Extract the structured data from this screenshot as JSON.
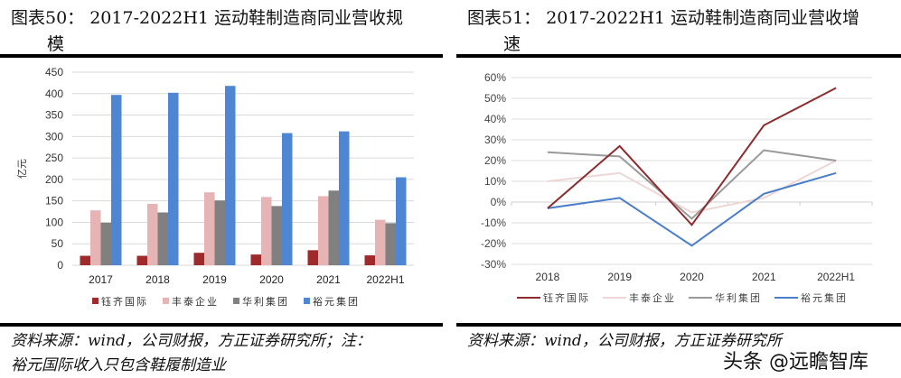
{
  "charts": [
    {
      "title_line1": "图表50：  2017-2022H1 运动鞋制造商同业营收规",
      "title_line2": "模",
      "source_line1": "资料来源：wind，公司财报，方正证券研究所；注：",
      "source_line2": "裕元国际收入只包含鞋履制造业"
    },
    {
      "title_line1": "图表51：  2017-2022H1 运动鞋制造商同业营收增",
      "title_line2": "速",
      "source_line1": "资料来源：wind，公司财报，方正证券研究所",
      "source_line2": ""
    }
  ],
  "watermark": "头条 @远瞻智库",
  "chart_data": [
    {
      "type": "bar",
      "title": "2017-2022H1 运动鞋制造商同业营收规模",
      "xlabel": "",
      "ylabel": "亿元",
      "ylim": [
        0,
        450
      ],
      "yticks": [
        0,
        50,
        100,
        150,
        200,
        250,
        300,
        350,
        400,
        450
      ],
      "grid": true,
      "legend_position": "bottom",
      "categories": [
        "2017",
        "2018",
        "2019",
        "2020",
        "2021",
        "2022H1"
      ],
      "series": [
        {
          "name": "钰齐国际",
          "color": "#9e2a2b",
          "values": [
            22,
            22,
            29,
            25,
            35,
            23
          ]
        },
        {
          "name": "丰泰企业",
          "color": "#e6b4b4",
          "values": [
            128,
            143,
            170,
            159,
            161,
            106
          ]
        },
        {
          "name": "华利集团",
          "color": "#808080",
          "values": [
            99,
            123,
            151,
            138,
            174,
            98
          ]
        },
        {
          "name": "裕元集团",
          "color": "#4f86d4",
          "values": [
            397,
            402,
            418,
            308,
            312,
            205
          ]
        }
      ]
    },
    {
      "type": "line",
      "title": "2017-2022H1 运动鞋制造商同业营收增速",
      "xlabel": "",
      "ylabel": "",
      "ylim": [
        -30,
        60
      ],
      "yticks": [
        -30,
        -20,
        -10,
        0,
        10,
        20,
        30,
        40,
        50,
        60
      ],
      "ytick_labels": [
        "-30%",
        "-20%",
        "-10%",
        "0%",
        "10%",
        "20%",
        "30%",
        "40%",
        "50%",
        "60%"
      ],
      "grid": true,
      "legend_position": "bottom",
      "categories": [
        "2018",
        "2019",
        "2020",
        "2021",
        "2022H1"
      ],
      "series": [
        {
          "name": "钰齐国际",
          "color": "#8b2c2e",
          "values": [
            -3,
            27,
            -11,
            37,
            55
          ]
        },
        {
          "name": "丰泰企业",
          "color": "#efd6d6",
          "values": [
            10,
            14,
            -5,
            2,
            20
          ]
        },
        {
          "name": "华利集团",
          "color": "#9a9a9a",
          "values": [
            24,
            22,
            -8,
            25,
            20
          ]
        },
        {
          "name": "裕元集团",
          "color": "#4a7ec9",
          "values": [
            -3,
            2,
            -21,
            4,
            14
          ]
        }
      ]
    }
  ]
}
